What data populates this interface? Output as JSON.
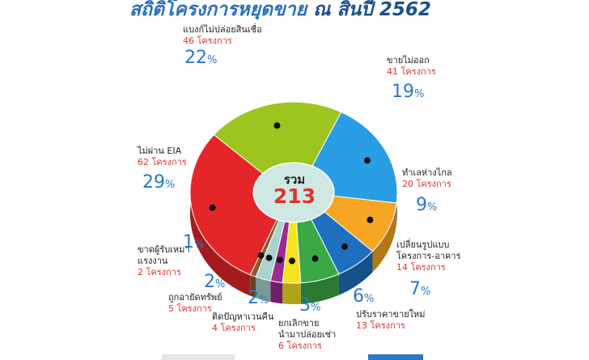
{
  "header": {
    "title_main": "สถิติโครงการหยุดขาย",
    "title_year": "ณ สิ้นปี 2562"
  },
  "center": {
    "label": "รวม",
    "total": "213"
  },
  "colors": {
    "accent": "#2a78c8",
    "count": "#e0342b"
  },
  "chart_data": {
    "type": "pie",
    "title": "สถิติโครงการหยุดขาย ณ สิ้นปี 2562",
    "total": 213,
    "unit": "โครงการ",
    "slices": [
      {
        "label": "แบงก์ไม่ปล่อยสินเชื่อ",
        "count_text": "46 โครงการ",
        "value": 46,
        "percent_num": "22",
        "percent": 22,
        "color": "#9cc51f"
      },
      {
        "label": "ขายไม่ออก",
        "count_text": "41 โครงการ",
        "value": 41,
        "percent_num": "19",
        "percent": 19,
        "color": "#2a9ee4"
      },
      {
        "label": "ทำเลห่างไกล",
        "count_text": "20 โครงการ",
        "value": 20,
        "percent_num": "9",
        "percent": 9,
        "color": "#f6a623"
      },
      {
        "label": "เปลี่ยนรูปแบบ",
        "label2": "โครงการ-อาคาร",
        "count_text": "14 โครงการ",
        "value": 14,
        "percent_num": "7",
        "percent": 7,
        "color": "#1f6fc1"
      },
      {
        "label": "ปรับราคาขายใหม่",
        "count_text": "13 โครงการ",
        "value": 13,
        "percent_num": "6",
        "percent": 6,
        "color": "#39a845"
      },
      {
        "label": "ยกเลิกขาย",
        "label2": "นำมาปล่อยเช่า",
        "count_text": "6 โครงการ",
        "value": 6,
        "percent_num": "3",
        "percent": 3,
        "color": "#f5e31e"
      },
      {
        "label": "ติดปัญหาเวนคืน",
        "count_text": "4 โครงการ",
        "value": 4,
        "percent_num": "2",
        "percent": 2,
        "color": "#9c2a8f"
      },
      {
        "label": "ถูกอายัดทรัพย์",
        "count_text": "5 โครงการ",
        "value": 5,
        "percent_num": "2",
        "percent": 2,
        "color": "#a9d3cd"
      },
      {
        "label": "ขาดผู้รับเหมา",
        "label2": "แรงงาน",
        "count_text": "2 โครงการ",
        "value": 2,
        "percent_num": "1",
        "percent": 1,
        "color": "#8b5a2b"
      },
      {
        "label": "ไม่ผ่าน EIA",
        "count_text": "62 โครงการ",
        "value": 62,
        "percent_num": "29",
        "percent": 29,
        "color": "#e4262a"
      }
    ]
  }
}
